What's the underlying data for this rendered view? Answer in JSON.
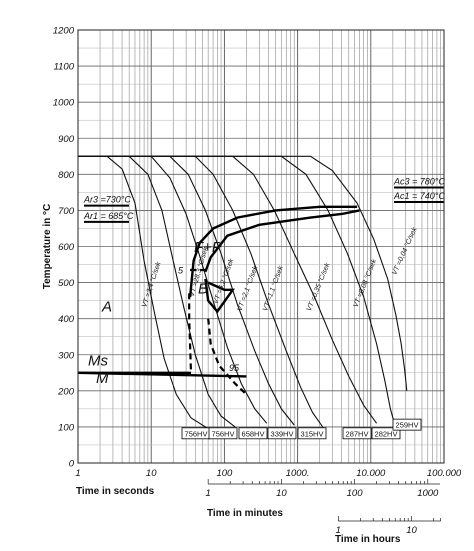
{
  "chart_data": {
    "type": "line",
    "ylabel": "Temperature in °C",
    "xlabel": "Time in seconds",
    "xlabel2": "Time in minutes",
    "xlabel3": "Time in hours",
    "xscale": "log",
    "xlim": [
      1,
      100000
    ],
    "ylim": [
      0,
      1200
    ],
    "grid": true,
    "y_ticks": [
      "0",
      "100",
      "200",
      "300",
      "400",
      "500",
      "600",
      "700",
      "800",
      "900",
      "1000",
      "1100",
      "1200"
    ],
    "x_ticks": [
      {
        "v": 1,
        "label": "1"
      },
      {
        "v": 10,
        "label": "10"
      },
      {
        "v": 100,
        "label": "100"
      },
      {
        "v": 1000,
        "label": "1000."
      },
      {
        "v": 10000,
        "label": "10.000"
      },
      {
        "v": 100000,
        "label": "100.000"
      }
    ],
    "minute_ticks": [
      {
        "v": 1,
        "label": "1"
      },
      {
        "v": 10,
        "label": "10"
      },
      {
        "v": 100,
        "label": "100"
      },
      {
        "v": 1000,
        "label": "1000"
      }
    ],
    "hour_ticks": [
      {
        "v": 1,
        "label": "1"
      },
      {
        "v": 10,
        "label": "10"
      }
    ],
    "critical_temps": [
      {
        "label": "Ar3 =730°C",
        "value": 730
      },
      {
        "label": "Ar1 = 685°C",
        "value": 685
      },
      {
        "label": "Ac3 = 780°C",
        "value": 780
      },
      {
        "label": "Ac1 = 740°C",
        "value": 740
      }
    ],
    "regions": [
      "A",
      "F+P",
      "B",
      "Ms",
      "M",
      "5",
      "95"
    ],
    "ms_temperature": 250,
    "cooling_curves": [
      {
        "rate_label": "VT =3,4 °C/sek",
        "points": [
          [
            1,
            850
          ],
          [
            2.5,
            850
          ],
          [
            4,
            815
          ],
          [
            6,
            720
          ],
          [
            8,
            560
          ],
          [
            11,
            420
          ],
          [
            15,
            290
          ],
          [
            22,
            190
          ],
          [
            35,
            125
          ],
          [
            60,
            95
          ]
        ],
        "hardness": "756HV"
      },
      {
        "rate_label": "VT =28,3 °C/sek",
        "points": [
          [
            1,
            850
          ],
          [
            5,
            850
          ],
          [
            9,
            800
          ],
          [
            14,
            700
          ],
          [
            20,
            560
          ],
          [
            28,
            430
          ],
          [
            40,
            300
          ],
          [
            60,
            190
          ],
          [
            90,
            130
          ],
          [
            140,
            100
          ]
        ],
        "hardness": "756HV"
      },
      {
        "rate_label": "VT =6,2 °C/sek",
        "points": [
          [
            1,
            850
          ],
          [
            10,
            850
          ],
          [
            18,
            790
          ],
          [
            30,
            690
          ],
          [
            45,
            580
          ],
          [
            70,
            450
          ],
          [
            110,
            320
          ],
          [
            170,
            220
          ],
          [
            260,
            150
          ],
          [
            380,
            110
          ]
        ],
        "hardness": "658HV"
      },
      {
        "rate_label": "VT =2,1 °C/sek",
        "points": [
          [
            1,
            850
          ],
          [
            18,
            850
          ],
          [
            32,
            800
          ],
          [
            55,
            700
          ],
          [
            90,
            580
          ],
          [
            150,
            440
          ],
          [
            260,
            310
          ],
          [
            400,
            220
          ],
          [
            600,
            150
          ],
          [
            900,
            105
          ]
        ],
        "hardness": "339HV"
      },
      {
        "rate_label": "VT =1,1 °C/sek",
        "points": [
          [
            1,
            850
          ],
          [
            40,
            850
          ],
          [
            70,
            800
          ],
          [
            130,
            700
          ],
          [
            230,
            580
          ],
          [
            400,
            440
          ],
          [
            700,
            310
          ],
          [
            1100,
            210
          ],
          [
            1600,
            140
          ],
          [
            2200,
            100
          ]
        ],
        "hardness": "315HV"
      },
      {
        "rate_label": "VT =0,35 °C/sek",
        "points": [
          [
            1,
            850
          ],
          [
            130,
            850
          ],
          [
            250,
            800
          ],
          [
            480,
            700
          ],
          [
            900,
            580
          ],
          [
            1700,
            460
          ],
          [
            3000,
            340
          ],
          [
            5000,
            240
          ],
          [
            8000,
            160
          ],
          [
            12000,
            110
          ]
        ],
        "hardness": "287HV"
      },
      {
        "rate_label": "VT =0,08 °C/sek",
        "points": [
          [
            1,
            850
          ],
          [
            600,
            850
          ],
          [
            1300,
            800
          ],
          [
            2600,
            700
          ],
          [
            4800,
            580
          ],
          [
            8000,
            460
          ],
          [
            12000,
            330
          ],
          [
            15500,
            230
          ],
          [
            18500,
            150
          ],
          [
            21000,
            110
          ]
        ],
        "hardness": "282HV"
      },
      {
        "rate_label": "VT =0,04 °C/sek",
        "points": [
          [
            1,
            850
          ],
          [
            1500,
            850
          ],
          [
            3000,
            810
          ],
          [
            6500,
            720
          ],
          [
            11000,
            620
          ],
          [
            17000,
            510
          ],
          [
            22000,
            410
          ],
          [
            26000,
            330
          ],
          [
            29000,
            260
          ],
          [
            31000,
            200
          ]
        ],
        "hardness": "259HV"
      }
    ],
    "transformation_lines": [
      {
        "name": "F+P start",
        "points": [
          [
            34,
            460
          ],
          [
            38,
            560
          ],
          [
            46,
            610
          ],
          [
            70,
            650
          ],
          [
            150,
            680
          ],
          [
            500,
            700
          ],
          [
            2000,
            710
          ],
          [
            6500,
            710
          ]
        ]
      },
      {
        "name": "F+P finish",
        "points": [
          [
            55,
            530
          ],
          [
            65,
            570
          ],
          [
            110,
            630
          ],
          [
            300,
            660
          ],
          [
            1500,
            680
          ],
          [
            4000,
            690
          ],
          [
            7000,
            700
          ]
        ]
      },
      {
        "name": "B finish",
        "points": [
          [
            55,
            510
          ],
          [
            60,
            450
          ],
          [
            80,
            420
          ],
          [
            120,
            470
          ],
          [
            130,
            480
          ],
          [
            100,
            480
          ],
          [
            60,
            500
          ]
        ]
      },
      {
        "name": "Ms",
        "points": [
          [
            1,
            250
          ],
          [
            200,
            240
          ]
        ]
      }
    ],
    "transformation_dashed": [
      {
        "name": "5% line",
        "points": [
          [
            34,
            535
          ],
          [
            42,
            535
          ],
          [
            58,
            535
          ]
        ]
      },
      {
        "name": "95% line",
        "points": [
          [
            60,
            400
          ],
          [
            65,
            330
          ],
          [
            85,
            270
          ],
          [
            140,
            220
          ],
          [
            200,
            190
          ]
        ]
      },
      {
        "name": "B start",
        "points": [
          [
            33,
            470
          ],
          [
            33,
            400
          ],
          [
            35,
            250
          ]
        ]
      }
    ]
  }
}
